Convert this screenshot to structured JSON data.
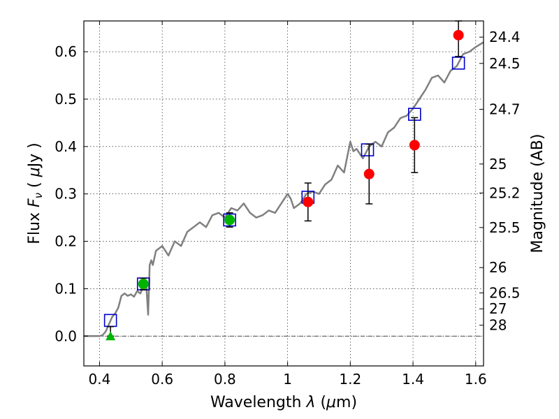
{
  "chart_data": {
    "type": "scatter",
    "xlabel_parts": [
      "Wavelength  ",
      "λ",
      " (",
      "μ",
      "m)"
    ],
    "ylabel_parts": [
      "Flux  ",
      "F",
      "ν",
      "  ( ",
      "μ",
      "Jy )"
    ],
    "y2label": "Magnitude (AB)",
    "xlim": [
      0.35,
      1.625
    ],
    "ylim": [
      -0.063,
      0.665
    ],
    "grid": true,
    "x_ticks": [
      {
        "value": 0.4,
        "label": "0.4"
      },
      {
        "value": 0.6,
        "label": "0.6"
      },
      {
        "value": 0.8,
        "label": "0.8"
      },
      {
        "value": 1.0,
        "label": "1"
      },
      {
        "value": 1.2,
        "label": "1.2"
      },
      {
        "value": 1.4,
        "label": "1.4"
      },
      {
        "value": 1.6,
        "label": "1.6"
      }
    ],
    "y_ticks": [
      {
        "value": 0.0,
        "label": "0.0"
      },
      {
        "value": 0.1,
        "label": "0.1"
      },
      {
        "value": 0.2,
        "label": "0.2"
      },
      {
        "value": 0.3,
        "label": "0.3"
      },
      {
        "value": 0.4,
        "label": "0.4"
      },
      {
        "value": 0.5,
        "label": "0.5"
      },
      {
        "value": 0.6,
        "label": "0.6"
      }
    ],
    "mag_ticks": [
      {
        "flux": 0.6309,
        "label": "24.4"
      },
      {
        "flux": 0.5754,
        "label": "24.5"
      },
      {
        "flux": 0.4786,
        "label": "24.7"
      },
      {
        "flux": 0.3631,
        "label": "25"
      },
      {
        "flux": 0.302,
        "label": "25.2"
      },
      {
        "flux": 0.2291,
        "label": "25.5"
      },
      {
        "flux": 0.1445,
        "label": "26"
      },
      {
        "flux": 0.0912,
        "label": "26.5"
      },
      {
        "flux": 0.0575,
        "label": "27"
      },
      {
        "flux": 0.0229,
        "label": "28"
      }
    ],
    "colors": {
      "model": "#808080",
      "photometry_red": "#ff0000",
      "photometry_green": "#00b400",
      "model_box": "#0000cc",
      "errorbar": "#000000",
      "zero_line": "#000000"
    },
    "series": [
      {
        "marker": "line",
        "x": [
          0.35,
          0.39,
          0.4,
          0.41,
          0.42,
          0.43,
          0.44,
          0.45,
          0.46,
          0.47,
          0.48,
          0.49,
          0.5,
          0.51,
          0.52,
          0.53,
          0.54,
          0.55,
          0.555,
          0.56,
          0.565,
          0.57,
          0.58,
          0.6,
          0.62,
          0.64,
          0.66,
          0.68,
          0.7,
          0.72,
          0.74,
          0.76,
          0.78,
          0.8,
          0.82,
          0.84,
          0.86,
          0.88,
          0.9,
          0.92,
          0.94,
          0.96,
          0.98,
          1.0,
          1.01,
          1.02,
          1.04,
          1.06,
          1.08,
          1.1,
          1.12,
          1.14,
          1.16,
          1.18,
          1.2,
          1.21,
          1.22,
          1.24,
          1.26,
          1.28,
          1.3,
          1.32,
          1.34,
          1.36,
          1.38,
          1.4,
          1.42,
          1.44,
          1.46,
          1.48,
          1.5,
          1.52,
          1.54,
          1.56,
          1.58,
          1.6,
          1.625
        ],
        "y": [
          0.0,
          0.0,
          0.0,
          0.002,
          0.01,
          0.025,
          0.04,
          0.048,
          0.06,
          0.085,
          0.09,
          0.085,
          0.088,
          0.083,
          0.095,
          0.09,
          0.105,
          0.1,
          0.045,
          0.15,
          0.16,
          0.15,
          0.18,
          0.19,
          0.17,
          0.2,
          0.19,
          0.22,
          0.23,
          0.24,
          0.23,
          0.255,
          0.26,
          0.25,
          0.27,
          0.265,
          0.28,
          0.26,
          0.25,
          0.255,
          0.265,
          0.26,
          0.28,
          0.3,
          0.29,
          0.27,
          0.28,
          0.3,
          0.305,
          0.3,
          0.32,
          0.33,
          0.36,
          0.345,
          0.41,
          0.39,
          0.395,
          0.375,
          0.4,
          0.41,
          0.4,
          0.43,
          0.44,
          0.46,
          0.465,
          0.48,
          0.5,
          0.52,
          0.545,
          0.55,
          0.535,
          0.56,
          0.57,
          0.595,
          0.6,
          0.61,
          0.62
        ]
      },
      {
        "marker": "square",
        "x": [
          0.435,
          0.54,
          0.815,
          1.065,
          1.255,
          1.405,
          1.545
        ],
        "y": [
          0.033,
          0.11,
          0.245,
          0.293,
          0.393,
          0.468,
          0.576
        ]
      },
      {
        "marker": "circle-green",
        "x": [
          0.54,
          0.815
        ],
        "y": [
          0.11,
          0.245
        ],
        "err": [
          0.012,
          0.015
        ]
      },
      {
        "marker": "triangle-green",
        "x": [
          0.435
        ],
        "y": [
          0.0
        ],
        "err_low": [
          0.0
        ],
        "err_high": [
          0.02
        ]
      },
      {
        "marker": "circle-red",
        "x": [
          1.065,
          1.26,
          1.405,
          1.545
        ],
        "y": [
          0.283,
          0.342,
          0.403,
          0.635
        ],
        "err": [
          0.04,
          0.063,
          0.058,
          0.045
        ]
      }
    ]
  }
}
